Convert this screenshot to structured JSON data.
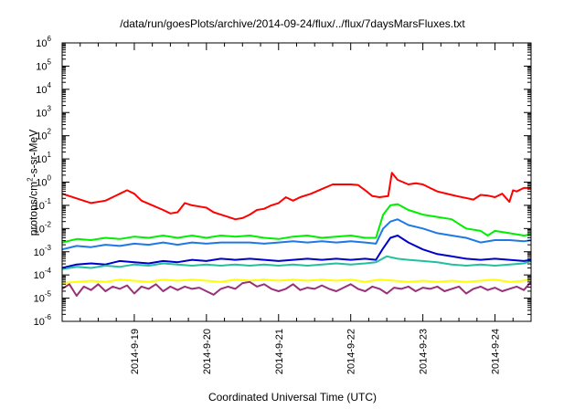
{
  "chart_data": {
    "type": "line",
    "title": "/data/run/goesPlots/archive/2014-09-24/flux/../flux/7daysMarsFluxes.txt",
    "xlabel": "Coordinated Universal Time (UTC)",
    "ylabel": {
      "prefix": "protons/cm",
      "sup": "2",
      "suffix": "-s-sr-MeV"
    },
    "y_scale": "log",
    "ylim_exponents": [
      -6,
      6
    ],
    "y_tick_base": "10",
    "y_tick_exponents": [
      "6",
      "5",
      "4",
      "3",
      "2",
      "1",
      "0",
      "-1",
      "-2",
      "-3",
      "-4",
      "-5",
      "-6"
    ],
    "xlim_days": [
      0,
      6.5
    ],
    "x_ticks": [
      {
        "day": 1,
        "label": "2014-9-19"
      },
      {
        "day": 2,
        "label": "2014-9-20"
      },
      {
        "day": 3,
        "label": "2014-9-21"
      },
      {
        "day": 4,
        "label": "2014-9-22"
      },
      {
        "day": 5,
        "label": "2014-9-23"
      },
      {
        "day": 6,
        "label": "2014-9-24"
      }
    ],
    "series": [
      {
        "color": "#ff0000",
        "width": 2,
        "points": [
          [
            0,
            -0.5
          ],
          [
            0.2,
            -0.7
          ],
          [
            0.4,
            -0.9
          ],
          [
            0.6,
            -0.8
          ],
          [
            0.8,
            -0.5
          ],
          [
            0.9,
            -0.35
          ],
          [
            1.0,
            -0.5
          ],
          [
            1.1,
            -0.8
          ],
          [
            1.25,
            -1.0
          ],
          [
            1.4,
            -1.2
          ],
          [
            1.5,
            -1.35
          ],
          [
            1.6,
            -1.3
          ],
          [
            1.7,
            -0.9
          ],
          [
            1.8,
            -1.0
          ],
          [
            1.9,
            -1.05
          ],
          [
            2.0,
            -1.1
          ],
          [
            2.1,
            -1.3
          ],
          [
            2.2,
            -1.4
          ],
          [
            2.3,
            -1.5
          ],
          [
            2.4,
            -1.6
          ],
          [
            2.5,
            -1.55
          ],
          [
            2.6,
            -1.4
          ],
          [
            2.7,
            -1.2
          ],
          [
            2.8,
            -1.15
          ],
          [
            2.9,
            -1.0
          ],
          [
            3.0,
            -0.9
          ],
          [
            3.1,
            -0.65
          ],
          [
            3.2,
            -0.8
          ],
          [
            3.3,
            -0.65
          ],
          [
            3.45,
            -0.5
          ],
          [
            3.6,
            -0.3
          ],
          [
            3.75,
            -0.1
          ],
          [
            3.9,
            -0.1
          ],
          [
            4.0,
            -0.1
          ],
          [
            4.1,
            -0.12
          ],
          [
            4.2,
            -0.35
          ],
          [
            4.3,
            -0.6
          ],
          [
            4.4,
            -0.65
          ],
          [
            4.52,
            -0.6
          ],
          [
            4.57,
            0.4
          ],
          [
            4.65,
            0.1
          ],
          [
            4.8,
            -0.1
          ],
          [
            4.9,
            -0.05
          ],
          [
            5.0,
            -0.1
          ],
          [
            5.1,
            -0.25
          ],
          [
            5.2,
            -0.4
          ],
          [
            5.4,
            -0.55
          ],
          [
            5.5,
            -0.62
          ],
          [
            5.7,
            -0.75
          ],
          [
            5.8,
            -0.55
          ],
          [
            5.9,
            -0.58
          ],
          [
            6.0,
            -0.65
          ],
          [
            6.1,
            -0.5
          ],
          [
            6.2,
            -0.85
          ],
          [
            6.25,
            -0.35
          ],
          [
            6.3,
            -0.4
          ],
          [
            6.4,
            -0.25
          ],
          [
            6.5,
            -0.25
          ]
        ]
      },
      {
        "color": "#00ee00",
        "width": 2,
        "points": [
          [
            0,
            -2.6
          ],
          [
            0.2,
            -2.45
          ],
          [
            0.4,
            -2.5
          ],
          [
            0.6,
            -2.4
          ],
          [
            0.8,
            -2.45
          ],
          [
            1.0,
            -2.35
          ],
          [
            1.2,
            -2.4
          ],
          [
            1.4,
            -2.3
          ],
          [
            1.6,
            -2.4
          ],
          [
            1.8,
            -2.3
          ],
          [
            2.0,
            -2.4
          ],
          [
            2.2,
            -2.3
          ],
          [
            2.4,
            -2.35
          ],
          [
            2.6,
            -2.3
          ],
          [
            2.8,
            -2.4
          ],
          [
            3.0,
            -2.45
          ],
          [
            3.2,
            -2.35
          ],
          [
            3.4,
            -2.3
          ],
          [
            3.6,
            -2.4
          ],
          [
            3.8,
            -2.35
          ],
          [
            4.0,
            -2.3
          ],
          [
            4.2,
            -2.4
          ],
          [
            4.35,
            -2.4
          ],
          [
            4.45,
            -1.4
          ],
          [
            4.55,
            -1.0
          ],
          [
            4.65,
            -0.95
          ],
          [
            4.8,
            -1.2
          ],
          [
            5.0,
            -1.4
          ],
          [
            5.2,
            -1.5
          ],
          [
            5.4,
            -1.6
          ],
          [
            5.5,
            -1.8
          ],
          [
            5.6,
            -2.0
          ],
          [
            5.8,
            -2.1
          ],
          [
            5.9,
            -2.3
          ],
          [
            6.0,
            -2.1
          ],
          [
            6.2,
            -2.2
          ],
          [
            6.4,
            -2.3
          ],
          [
            6.5,
            -2.25
          ]
        ]
      },
      {
        "color": "#1e78e6",
        "width": 2,
        "points": [
          [
            0,
            -2.9
          ],
          [
            0.2,
            -2.75
          ],
          [
            0.4,
            -2.8
          ],
          [
            0.6,
            -2.7
          ],
          [
            0.8,
            -2.75
          ],
          [
            1.0,
            -2.65
          ],
          [
            1.2,
            -2.7
          ],
          [
            1.4,
            -2.6
          ],
          [
            1.6,
            -2.7
          ],
          [
            1.8,
            -2.6
          ],
          [
            2.0,
            -2.65
          ],
          [
            2.2,
            -2.6
          ],
          [
            2.4,
            -2.6
          ],
          [
            2.6,
            -2.6
          ],
          [
            2.8,
            -2.65
          ],
          [
            3.0,
            -2.6
          ],
          [
            3.2,
            -2.55
          ],
          [
            3.4,
            -2.6
          ],
          [
            3.6,
            -2.55
          ],
          [
            3.8,
            -2.6
          ],
          [
            4.0,
            -2.55
          ],
          [
            4.2,
            -2.6
          ],
          [
            4.35,
            -2.65
          ],
          [
            4.45,
            -2.0
          ],
          [
            4.55,
            -1.7
          ],
          [
            4.65,
            -1.6
          ],
          [
            4.8,
            -1.85
          ],
          [
            5.0,
            -2.0
          ],
          [
            5.2,
            -2.2
          ],
          [
            5.4,
            -2.3
          ],
          [
            5.6,
            -2.4
          ],
          [
            5.8,
            -2.6
          ],
          [
            6.0,
            -2.5
          ],
          [
            6.2,
            -2.5
          ],
          [
            6.4,
            -2.55
          ],
          [
            6.5,
            -2.5
          ]
        ]
      },
      {
        "color": "#0000cc",
        "width": 2,
        "points": [
          [
            0,
            -3.7
          ],
          [
            0.2,
            -3.55
          ],
          [
            0.4,
            -3.5
          ],
          [
            0.6,
            -3.55
          ],
          [
            0.8,
            -3.4
          ],
          [
            1.0,
            -3.45
          ],
          [
            1.2,
            -3.5
          ],
          [
            1.4,
            -3.4
          ],
          [
            1.6,
            -3.45
          ],
          [
            1.8,
            -3.35
          ],
          [
            2.0,
            -3.4
          ],
          [
            2.2,
            -3.3
          ],
          [
            2.4,
            -3.35
          ],
          [
            2.6,
            -3.3
          ],
          [
            2.8,
            -3.35
          ],
          [
            3.0,
            -3.4
          ],
          [
            3.2,
            -3.35
          ],
          [
            3.4,
            -3.3
          ],
          [
            3.6,
            -3.35
          ],
          [
            3.8,
            -3.3
          ],
          [
            4.0,
            -3.35
          ],
          [
            4.2,
            -3.3
          ],
          [
            4.35,
            -3.35
          ],
          [
            4.45,
            -2.85
          ],
          [
            4.55,
            -2.4
          ],
          [
            4.65,
            -2.3
          ],
          [
            4.8,
            -2.6
          ],
          [
            5.0,
            -2.9
          ],
          [
            5.2,
            -3.1
          ],
          [
            5.4,
            -3.2
          ],
          [
            5.6,
            -3.3
          ],
          [
            5.8,
            -3.35
          ],
          [
            6.0,
            -3.3
          ],
          [
            6.2,
            -3.35
          ],
          [
            6.4,
            -3.4
          ],
          [
            6.5,
            -3.35
          ]
        ]
      },
      {
        "color": "#20c0a0",
        "width": 2,
        "points": [
          [
            0,
            -3.75
          ],
          [
            0.2,
            -3.65
          ],
          [
            0.4,
            -3.7
          ],
          [
            0.6,
            -3.6
          ],
          [
            0.8,
            -3.65
          ],
          [
            1.0,
            -3.55
          ],
          [
            1.2,
            -3.6
          ],
          [
            1.4,
            -3.5
          ],
          [
            1.6,
            -3.55
          ],
          [
            1.8,
            -3.6
          ],
          [
            2.0,
            -3.55
          ],
          [
            2.2,
            -3.6
          ],
          [
            2.4,
            -3.55
          ],
          [
            2.6,
            -3.6
          ],
          [
            2.8,
            -3.55
          ],
          [
            3.0,
            -3.6
          ],
          [
            3.2,
            -3.55
          ],
          [
            3.4,
            -3.6
          ],
          [
            3.6,
            -3.55
          ],
          [
            3.8,
            -3.5
          ],
          [
            4.0,
            -3.55
          ],
          [
            4.2,
            -3.5
          ],
          [
            4.35,
            -3.45
          ],
          [
            4.5,
            -3.2
          ],
          [
            4.65,
            -3.3
          ],
          [
            4.8,
            -3.35
          ],
          [
            5.0,
            -3.4
          ],
          [
            5.2,
            -3.45
          ],
          [
            5.4,
            -3.55
          ],
          [
            5.6,
            -3.6
          ],
          [
            5.8,
            -3.55
          ],
          [
            6.0,
            -3.6
          ],
          [
            6.2,
            -3.55
          ],
          [
            6.4,
            -3.5
          ],
          [
            6.5,
            -3.4
          ]
        ]
      },
      {
        "color": "#ffff00",
        "width": 2,
        "points": [
          [
            0,
            -4.35
          ],
          [
            0.2,
            -4.3
          ],
          [
            0.4,
            -4.25
          ],
          [
            0.6,
            -4.3
          ],
          [
            0.8,
            -4.2
          ],
          [
            1.0,
            -4.25
          ],
          [
            1.2,
            -4.3
          ],
          [
            1.4,
            -4.2
          ],
          [
            1.6,
            -4.25
          ],
          [
            1.8,
            -4.2
          ],
          [
            2.0,
            -4.25
          ],
          [
            2.2,
            -4.3
          ],
          [
            2.4,
            -4.2
          ],
          [
            2.6,
            -4.25
          ],
          [
            2.8,
            -4.2
          ],
          [
            3.0,
            -4.25
          ],
          [
            3.2,
            -4.2
          ],
          [
            3.4,
            -4.25
          ],
          [
            3.6,
            -4.2
          ],
          [
            3.8,
            -4.25
          ],
          [
            4.0,
            -4.2
          ],
          [
            4.2,
            -4.3
          ],
          [
            4.4,
            -4.2
          ],
          [
            4.6,
            -4.25
          ],
          [
            4.8,
            -4.3
          ],
          [
            5.0,
            -4.25
          ],
          [
            5.2,
            -4.3
          ],
          [
            5.4,
            -4.25
          ],
          [
            5.6,
            -4.3
          ],
          [
            5.8,
            -4.25
          ],
          [
            6.0,
            -4.2
          ],
          [
            6.2,
            -4.3
          ],
          [
            6.4,
            -4.25
          ],
          [
            6.5,
            -4.2
          ]
        ]
      },
      {
        "color": "#9a3078",
        "width": 2,
        "points": [
          [
            0,
            -4.6
          ],
          [
            0.1,
            -4.4
          ],
          [
            0.2,
            -4.9
          ],
          [
            0.3,
            -4.5
          ],
          [
            0.4,
            -4.65
          ],
          [
            0.5,
            -4.4
          ],
          [
            0.6,
            -4.7
          ],
          [
            0.7,
            -4.5
          ],
          [
            0.8,
            -4.6
          ],
          [
            0.9,
            -4.45
          ],
          [
            1.0,
            -4.8
          ],
          [
            1.1,
            -4.5
          ],
          [
            1.2,
            -4.6
          ],
          [
            1.3,
            -4.4
          ],
          [
            1.4,
            -4.7
          ],
          [
            1.5,
            -4.5
          ],
          [
            1.6,
            -4.65
          ],
          [
            1.7,
            -4.5
          ],
          [
            1.8,
            -4.6
          ],
          [
            1.9,
            -4.55
          ],
          [
            2.0,
            -4.7
          ],
          [
            2.1,
            -4.85
          ],
          [
            2.2,
            -4.6
          ],
          [
            2.3,
            -4.5
          ],
          [
            2.4,
            -4.6
          ],
          [
            2.5,
            -4.35
          ],
          [
            2.6,
            -4.3
          ],
          [
            2.7,
            -4.5
          ],
          [
            2.8,
            -4.4
          ],
          [
            2.9,
            -4.6
          ],
          [
            3.0,
            -4.7
          ],
          [
            3.1,
            -4.6
          ],
          [
            3.2,
            -4.4
          ],
          [
            3.3,
            -4.65
          ],
          [
            3.4,
            -4.55
          ],
          [
            3.5,
            -4.6
          ],
          [
            3.6,
            -4.45
          ],
          [
            3.7,
            -4.6
          ],
          [
            3.8,
            -4.7
          ],
          [
            3.9,
            -4.55
          ],
          [
            4.0,
            -4.4
          ],
          [
            4.1,
            -4.6
          ],
          [
            4.2,
            -4.7
          ],
          [
            4.3,
            -4.5
          ],
          [
            4.4,
            -4.6
          ],
          [
            4.5,
            -4.8
          ],
          [
            4.6,
            -4.55
          ],
          [
            4.7,
            -4.6
          ],
          [
            4.8,
            -4.5
          ],
          [
            4.9,
            -4.7
          ],
          [
            5.0,
            -4.55
          ],
          [
            5.1,
            -4.6
          ],
          [
            5.2,
            -4.5
          ],
          [
            5.3,
            -4.7
          ],
          [
            5.4,
            -4.6
          ],
          [
            5.5,
            -4.5
          ],
          [
            5.6,
            -4.8
          ],
          [
            5.7,
            -4.6
          ],
          [
            5.8,
            -4.5
          ],
          [
            5.9,
            -4.65
          ],
          [
            6.0,
            -4.55
          ],
          [
            6.1,
            -4.7
          ],
          [
            6.2,
            -4.6
          ],
          [
            6.3,
            -4.5
          ],
          [
            6.4,
            -4.65
          ],
          [
            6.5,
            -4.3
          ]
        ]
      }
    ]
  }
}
